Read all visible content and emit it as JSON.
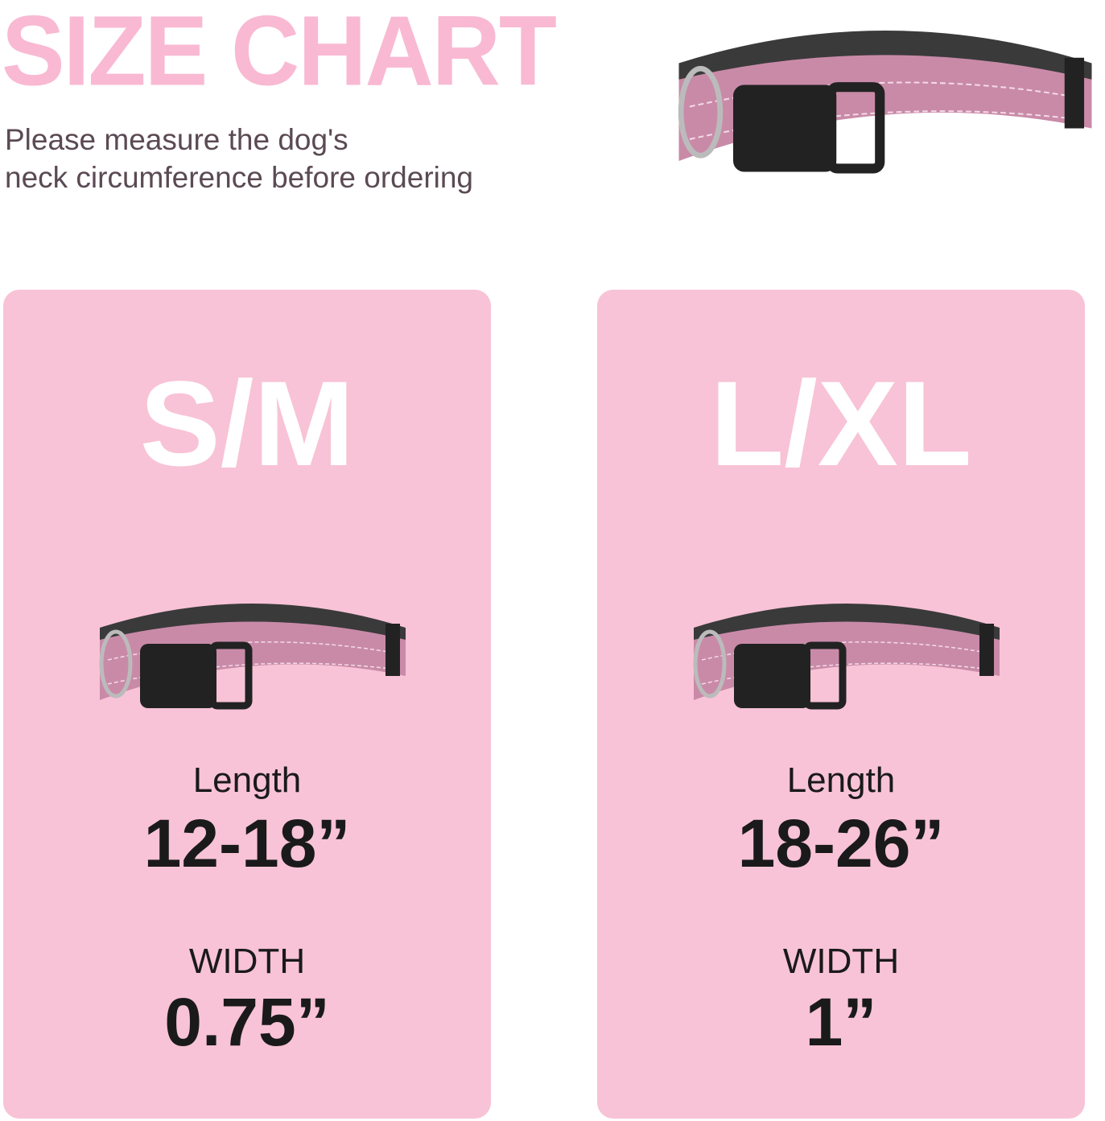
{
  "header": {
    "title": "SIZE CHART",
    "subtitle_line1": "Please measure the dog's",
    "subtitle_line2": "neck circumference before ordering"
  },
  "colors": {
    "title": "#f9b9d3",
    "card_bg": "#f8c3d6",
    "collar_band": "#c98aa8",
    "text_dark": "#1a1a1a"
  },
  "sizes": [
    {
      "name": "S/M",
      "length_label": "Length",
      "length": "12-18”",
      "width_label": "WIDTH",
      "width": "0.75”"
    },
    {
      "name": "L/XL",
      "length_label": "Length",
      "length": "18-26”",
      "width_label": "WIDTH",
      "width": "1”"
    }
  ]
}
